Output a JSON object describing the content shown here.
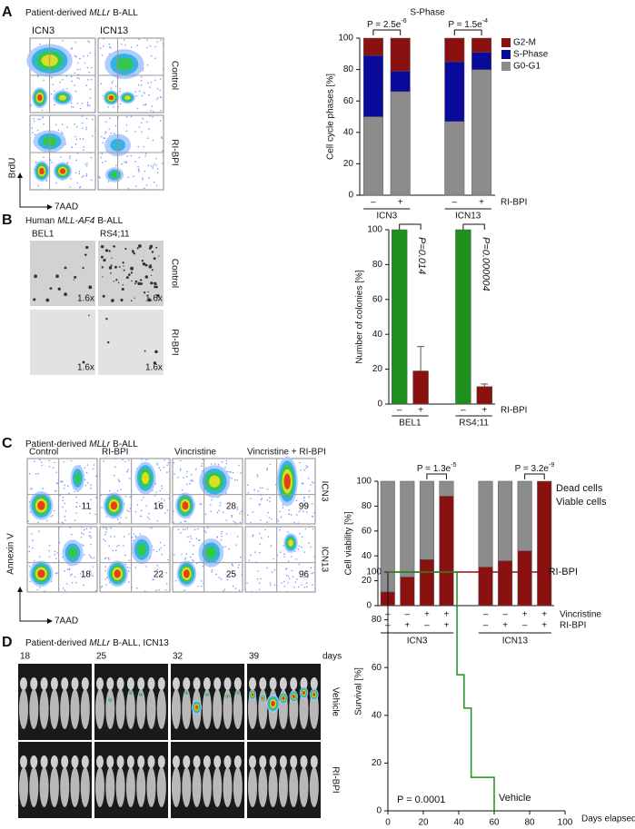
{
  "panels": [
    {
      "letter": "A",
      "heading": [
        "Patient-derived",
        "MLLr",
        "B-ALL"
      ],
      "columns": [
        "ICN3",
        "ICN13"
      ],
      "rows": [
        "Control",
        "RI-BPI"
      ],
      "y_axis": "BrdU",
      "x_axis": "7AAD"
    },
    {
      "letter": "B",
      "heading": [
        "Human",
        "MLL-AF4",
        "B-ALL"
      ],
      "columns": [
        "BEL1",
        "RS4;11"
      ],
      "rows": [
        "Control",
        "RI-BPI"
      ],
      "magnification": [
        "1.6x",
        "1.6x",
        "1.6x",
        "1.6x"
      ]
    },
    {
      "letter": "C",
      "heading": [
        "Patient-derived",
        "MLLr",
        "B-ALL"
      ],
      "columns": [
        "Control",
        "RI-BPI",
        "Vincristine",
        "Vincristine + RI-BPI"
      ],
      "rows": [
        "ICN3",
        "ICN13"
      ],
      "y_axis": "Annexin V",
      "x_axis": "7AAD",
      "percentages": [
        [
          11,
          16,
          28,
          99
        ],
        [
          18,
          22,
          25,
          96
        ]
      ]
    },
    {
      "letter": "D",
      "heading": [
        "Patient-derived",
        "MLLr",
        "B-ALL, ICN13"
      ],
      "days": [
        18,
        25,
        32,
        39
      ],
      "days_unit": "days",
      "rows": [
        "Vehicle",
        "RI-BPI"
      ],
      "row_colors": [
        "#1f8f1f",
        "#8b1010"
      ]
    }
  ],
  "chart_data": [
    {
      "type": "stacked_bar",
      "title": "S-Phase",
      "ylabel": "Cell cycle phases [%]",
      "ylim": [
        0,
        100
      ],
      "yticks": [
        0,
        20,
        40,
        60,
        80,
        100
      ],
      "rows": [
        {
          "label": "RI-BPI",
          "values": [
            "–",
            "+",
            "–",
            "+"
          ]
        }
      ],
      "groups": [
        "ICN3",
        "ICN13"
      ],
      "legend": "swatch",
      "series": [
        {
          "name": "G0-G1",
          "color": "#8c8c8c",
          "values": [
            50,
            66,
            47,
            80
          ]
        },
        {
          "name": "S-Phase",
          "color": "#0a0a9a",
          "values": [
            39,
            13,
            38,
            11
          ]
        },
        {
          "name": "G2-M",
          "color": "#8b1010",
          "values": [
            11,
            21,
            15,
            9
          ]
        }
      ],
      "annotations": [
        {
          "text": "P = 2.5e",
          "exponent": "-6"
        },
        {
          "text": "P = 1.5e",
          "exponent": "-4"
        }
      ]
    },
    {
      "type": "bar",
      "ylabel": "Number of colonies [%]",
      "ylim": [
        0,
        100
      ],
      "yticks": [
        0,
        20,
        40,
        60,
        80,
        100
      ],
      "rows": [
        {
          "label": "RI-BPI",
          "values": [
            "–",
            "+",
            "–",
            "+"
          ]
        }
      ],
      "groups": [
        "BEL1",
        "RS4;11"
      ],
      "values": [
        100,
        19,
        100,
        10
      ],
      "errors": [
        null,
        14,
        null,
        1.5
      ],
      "colors": [
        "#1f8f1f",
        "#8b1010",
        "#1f8f1f",
        "#8b1010"
      ],
      "annotations": [
        {
          "text": "P=0.014"
        },
        {
          "text": "P=0.000004"
        }
      ]
    },
    {
      "type": "stacked_bar",
      "ylabel": "Cell viability [%]",
      "ylim": [
        0,
        100
      ],
      "yticks": [
        0,
        20,
        40,
        60,
        80,
        100
      ],
      "rows": [
        {
          "label": "Vincristine",
          "values": [
            "–",
            "–",
            "+",
            "+",
            "–",
            "–",
            "+",
            "+"
          ]
        },
        {
          "label": "RI-BPI",
          "values": [
            "–",
            "+",
            "–",
            "+",
            "–",
            "+",
            "–",
            "+"
          ]
        }
      ],
      "groups": [
        "ICN3",
        "ICN13"
      ],
      "legend": "text",
      "series": [
        {
          "name": "Dead cells",
          "color": "#8b1010",
          "values": [
            11,
            23,
            37,
            88,
            31,
            36,
            44,
            100
          ]
        },
        {
          "name": "Viable cells",
          "color": "#8c8c8c",
          "values": [
            89,
            77,
            63,
            12,
            69,
            64,
            56,
            0
          ]
        }
      ],
      "annotations": [
        {
          "text": "P = 1.3e",
          "exponent": "-5"
        },
        {
          "text": "P = 3.2e",
          "exponent": "-9"
        }
      ]
    },
    {
      "type": "line",
      "xlabel": "Days elapsed",
      "ylabel": "Survival [%]",
      "xlim": [
        0,
        100
      ],
      "xticks": [
        0,
        20,
        40,
        60,
        80,
        100
      ],
      "ylim": [
        0,
        100
      ],
      "yticks": [
        0,
        20,
        40,
        60,
        80,
        100
      ],
      "series": [
        {
          "name": "RI-BPI",
          "color": "#8b1010",
          "x": [
            0,
            88
          ],
          "values": [
            100,
            100
          ]
        },
        {
          "name": "Vehicle",
          "color": "#1f8f1f",
          "x": [
            0,
            39,
            39,
            43,
            43,
            47,
            47,
            60,
            60
          ],
          "values": [
            100,
            100,
            57,
            57,
            43,
            43,
            14,
            14,
            0
          ]
        }
      ],
      "annotations": [
        {
          "text": "P = 0.0001"
        }
      ]
    }
  ]
}
